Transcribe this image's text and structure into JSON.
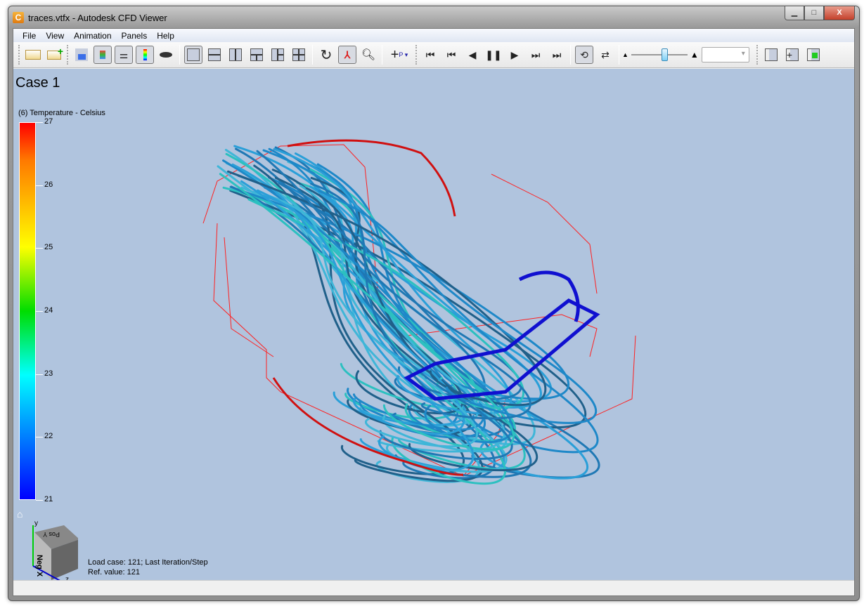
{
  "window": {
    "title": "traces.vtfx - Autodesk CFD Viewer",
    "app_icon_letter": "C",
    "minimize": "▁",
    "maximize": "□",
    "close": "X"
  },
  "menu": [
    "File",
    "View",
    "Animation",
    "Panels",
    "Help"
  ],
  "toolbar": {
    "icons": [
      "open-file",
      "add-file",
      "properties",
      "legend",
      "grid-lines",
      "color-scale",
      "shading",
      "single-view",
      "split-horizontal",
      "split-vertical",
      "split-top",
      "split-left",
      "split-quad",
      "rotate",
      "axis-view",
      "zoom",
      "pick-point",
      "first-frame",
      "prev-frame",
      "play-backward",
      "pause",
      "play",
      "next-frame",
      "last-frame",
      "loop",
      "swing",
      "speed-slider",
      "frame-select",
      "pane-1",
      "pane-2",
      "pane-3"
    ],
    "speed_slider_value": 0.6,
    "combo_value": ""
  },
  "viewport": {
    "case_title": "Case 1",
    "legend": {
      "title": "(6) Temperature - Celsius",
      "ticks": [
        "27",
        "26",
        "25",
        "24",
        "23",
        "22",
        "21"
      ],
      "min": 21,
      "max": 27
    },
    "info": {
      "line1": "Load case: 121; Last Iteration/Step",
      "line2": "Ref. value: 121"
    },
    "cube_labels": {
      "face_front": "Neg X",
      "face_top": "Pos Y",
      "axis_y": "y",
      "axis_z": "z"
    }
  },
  "colors": {
    "viewport_bg": "#b0c4de",
    "outline": "#ff0000"
  }
}
